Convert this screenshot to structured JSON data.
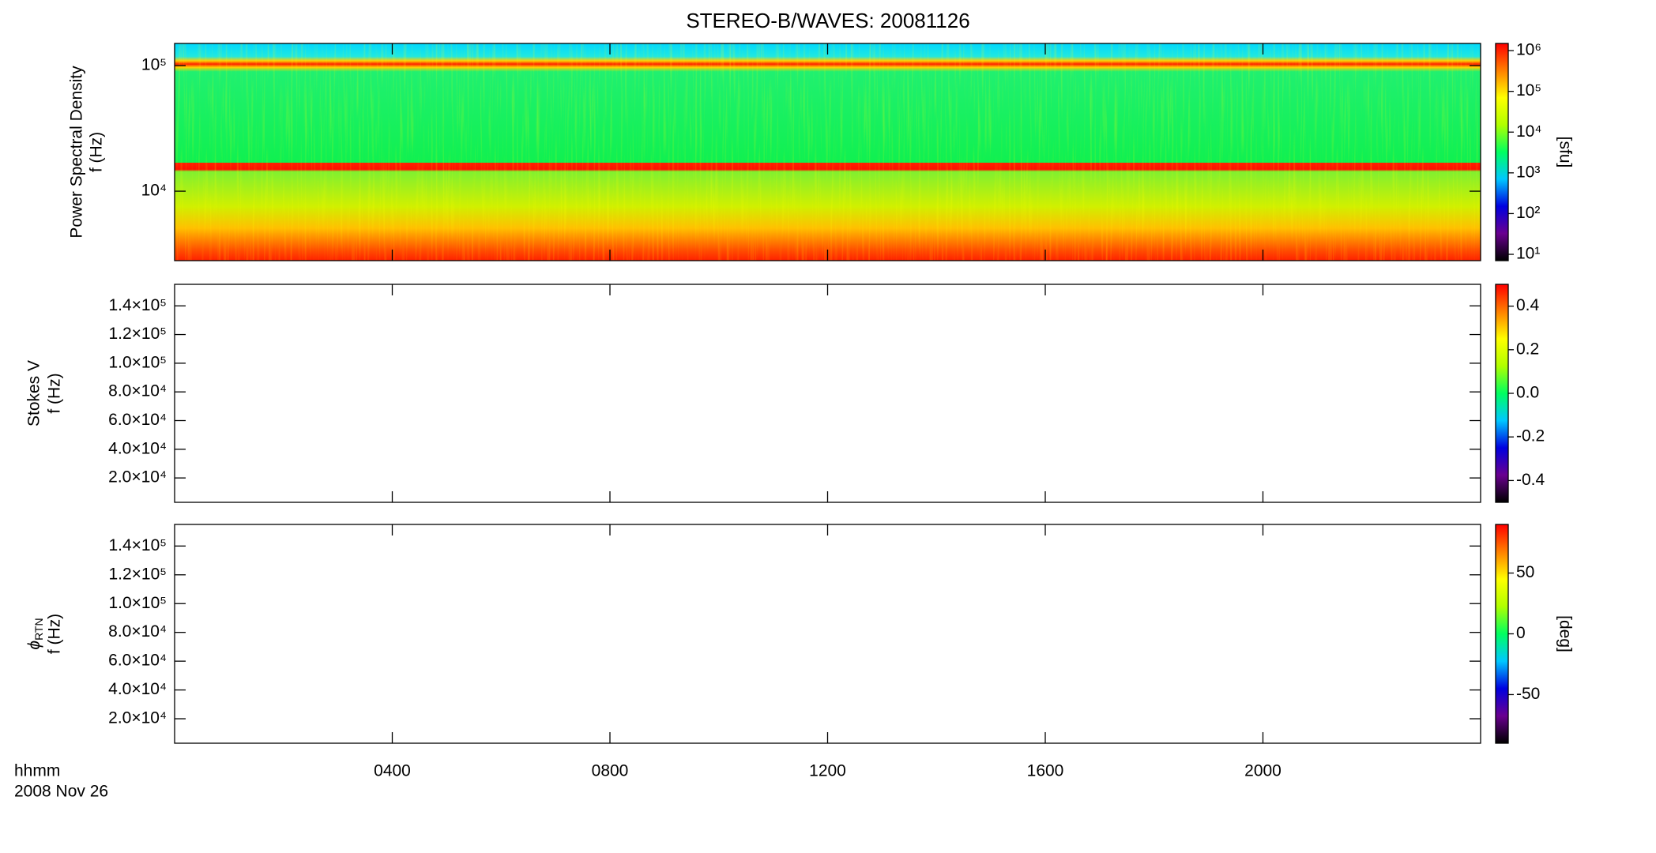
{
  "chart_data": [
    {
      "type": "heatmap",
      "title": "STEREO-B/WAVES: 20081126",
      "ylabel": [
        "Power Spectral Density",
        "f (Hz)"
      ],
      "ylog": true,
      "ylim": [
        2800,
        150000
      ],
      "yticks": [
        {
          "value": 10000,
          "label": "10⁴"
        },
        {
          "value": 100000,
          "label": "10⁵"
        }
      ],
      "colorbar": {
        "log": true,
        "lim": [
          7,
          1500000
        ],
        "label": "[sfu]",
        "ticks": [
          {
            "value": 10,
            "label": "10¹"
          },
          {
            "value": 100,
            "label": "10²"
          },
          {
            "value": 1000,
            "label": "10³"
          },
          {
            "value": 10000,
            "label": "10⁴"
          },
          {
            "value": 100000,
            "label": "10⁵"
          },
          {
            "value": 1000000,
            "label": "10⁶"
          }
        ]
      }
    },
    {
      "type": "heatmap",
      "ylabel": [
        "Stokes V",
        "f (Hz)"
      ],
      "ylim": [
        3000,
        155000
      ],
      "yticks": [
        {
          "value": 20000,
          "label": "2.0×10⁴"
        },
        {
          "value": 40000,
          "label": "4.0×10⁴"
        },
        {
          "value": 60000,
          "label": "6.0×10⁴"
        },
        {
          "value": 80000,
          "label": "8.0×10⁴"
        },
        {
          "value": 100000,
          "label": "1.0×10⁵"
        },
        {
          "value": 120000,
          "label": "1.2×10⁵"
        },
        {
          "value": 140000,
          "label": "1.4×10⁵"
        }
      ],
      "colorbar": {
        "lim": [
          -0.5,
          0.5
        ],
        "ticks": [
          -0.4,
          -0.2,
          {
            "value": 0,
            "label": "0.0"
          },
          0.2,
          0.4
        ]
      }
    },
    {
      "type": "heatmap",
      "ylabel": [
        "ϕ",
        "RTN",
        "f (Hz)"
      ],
      "ylim": [
        3000,
        155000
      ],
      "yticks": [
        {
          "value": 20000,
          "label": "2.0×10⁴"
        },
        {
          "value": 40000,
          "label": "4.0×10⁴"
        },
        {
          "value": 60000,
          "label": "6.0×10⁴"
        },
        {
          "value": 80000,
          "label": "8.0×10⁴"
        },
        {
          "value": 100000,
          "label": "1.0×10⁵"
        },
        {
          "value": 120000,
          "label": "1.2×10⁵"
        },
        {
          "value": 140000,
          "label": "1.4×10⁵"
        }
      ],
      "colorbar": {
        "lim": [
          -90,
          90
        ],
        "label": "[deg]",
        "ticks": [
          -50,
          0,
          50
        ]
      },
      "xlim": [
        0,
        24
      ],
      "xlabel": [
        "hhmm",
        "2008 Nov 26"
      ],
      "xticks": [
        {
          "value": 4,
          "label": "0400"
        },
        {
          "value": 8,
          "label": "0800"
        },
        {
          "value": 12,
          "label": "1200"
        },
        {
          "value": 16,
          "label": "1600"
        },
        {
          "value": 20,
          "label": "2000"
        }
      ]
    }
  ],
  "colormap": [
    "#000000",
    "#6a0090",
    "#0000e0",
    "#00c8ff",
    "#00ff60",
    "#b0ff00",
    "#ffff00",
    "#ff8000",
    "#ff0000"
  ]
}
